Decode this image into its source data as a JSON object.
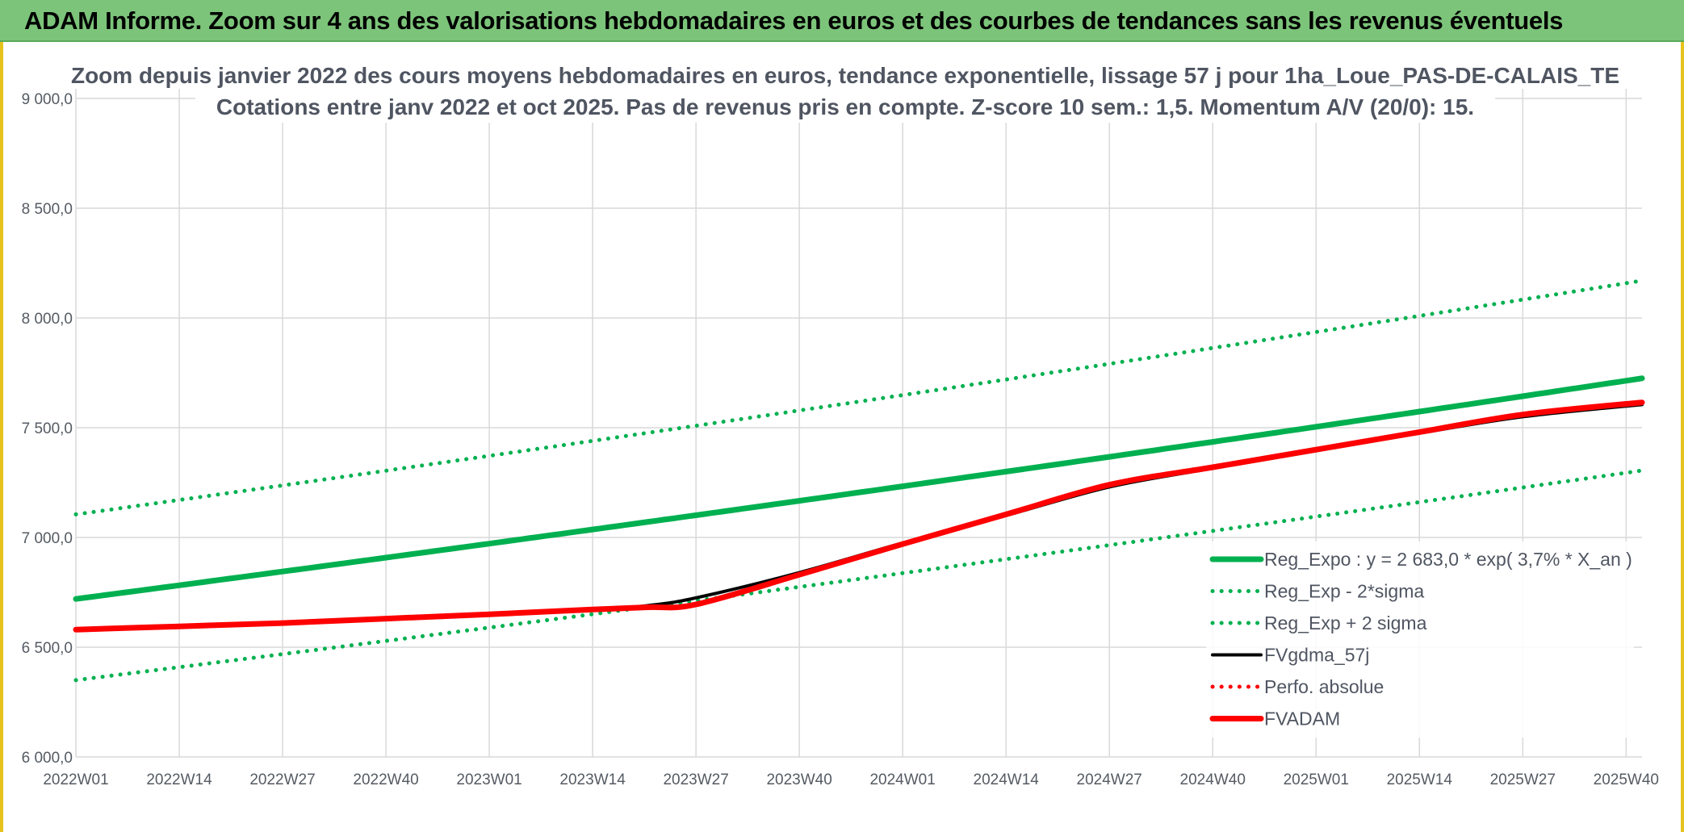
{
  "banner": {
    "title": "ADAM Informe. Zoom sur 4 ans des valorisations hebdomadaires en euros et des courbes de tendances sans les revenus éventuels"
  },
  "colors": {
    "banner_bg": "#7cc47a",
    "reg_green": "#00b050",
    "fv_black": "#000000",
    "adam_red": "#ff0000",
    "grid": "#d9d9d9",
    "text": "#4f5561"
  },
  "chart_data": {
    "type": "line",
    "title_lines": [
      "Zoom depuis janvier 2022 des cours moyens hebdomadaires en euros, tendance exponentielle, lissage 57 j pour 1ha_Loue_PAS-DE-CALAIS_TE",
      "Cotations entre janv 2022 et oct 2025. Pas de revenus pris en compte. Z-score 10 sem.: 1,5. Momentum A/V (20/0): 15."
    ],
    "xlabel": "",
    "ylabel": "",
    "ylim": [
      6000,
      9000
    ],
    "y_ticks": [
      6000,
      6500,
      7000,
      7500,
      8000,
      8500,
      9000
    ],
    "y_tick_labels": [
      "6 000,0",
      "6 500,0",
      "7 000,0",
      "7 500,0",
      "8 000,0",
      "8 500,0",
      "9 000,0"
    ],
    "x_range": [
      0,
      197
    ],
    "x_ticks": [
      0,
      13,
      26,
      39,
      52,
      65,
      78,
      91,
      104,
      117,
      130,
      143,
      156,
      169,
      182,
      195
    ],
    "x_tick_labels": [
      "2022W01",
      "2022W14",
      "2022W27",
      "2022W40",
      "2023W01",
      "2023W14",
      "2023W27",
      "2023W40",
      "2024W01",
      "2024W14",
      "2024W27",
      "2024W40",
      "2025W01",
      "2025W14",
      "2025W27",
      "2025W40"
    ],
    "grid": true,
    "legend_position": "bottom-right",
    "series": [
      {
        "name": "Reg_Expo : y = 2 683,0 * exp( 3,7% *  X_an )",
        "style": "solid-thick",
        "color": "#00b050",
        "x": [
          0,
          197
        ],
        "values": [
          6720,
          7725
        ],
        "kind": "exp"
      },
      {
        "name": "Reg_Exp - 2*sigma",
        "style": "dotted",
        "color": "#00b050",
        "x": [
          0,
          197
        ],
        "values": [
          6350,
          7305
        ],
        "kind": "exp"
      },
      {
        "name": "Reg_Exp + 2 sigma",
        "style": "dotted",
        "color": "#00b050",
        "x": [
          0,
          197
        ],
        "values": [
          7105,
          8170
        ],
        "kind": "exp"
      },
      {
        "name": "FVgdma_57j",
        "style": "solid",
        "color": "#000000",
        "x": [
          0,
          13,
          26,
          39,
          52,
          65,
          72,
          78,
          91,
          104,
          117,
          130,
          143,
          156,
          169,
          182,
          197
        ],
        "values": [
          6580,
          6595,
          6610,
          6630,
          6650,
          6670,
          6690,
          6725,
          6840,
          6975,
          7100,
          7230,
          7315,
          7395,
          7475,
          7550,
          7605
        ]
      },
      {
        "name": "Perfo. absolue",
        "style": "dotted",
        "color": "#ff0000",
        "x": [],
        "values": []
      },
      {
        "name": "FVADAM",
        "style": "solid-thick",
        "color": "#ff0000",
        "x": [
          0,
          13,
          26,
          39,
          52,
          65,
          72,
          78,
          91,
          104,
          117,
          130,
          143,
          156,
          169,
          182,
          197
        ],
        "values": [
          6580,
          6595,
          6610,
          6630,
          6650,
          6672,
          6682,
          6695,
          6830,
          6970,
          7105,
          7240,
          7320,
          7400,
          7480,
          7560,
          7615
        ]
      }
    ]
  }
}
